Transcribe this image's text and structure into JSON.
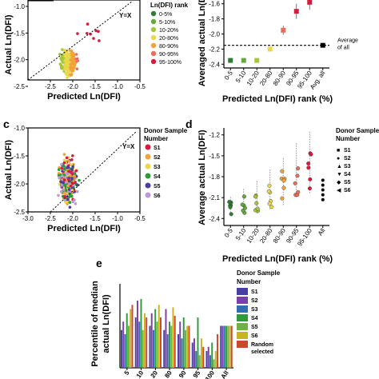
{
  "panel_labels": {
    "c": "c",
    "d": "d",
    "e": "e"
  },
  "chart_data": [
    {
      "id": "a",
      "type": "scatter",
      "xlabel": "Predicted Ln(DFI)",
      "ylabel": "Actual Ln(DFI)",
      "xlim": [
        -3.0,
        -0.5
      ],
      "ylim": [
        -2.5,
        -1.0
      ],
      "xticks": [
        "-2.5",
        "-2.0",
        "-1.5",
        "-1.0",
        "-0.5"
      ],
      "yticks": [
        "-1.0",
        "-1.5",
        "-2.0",
        "-2.5"
      ],
      "reference_line": "Y=X",
      "legend_title": "Ln(DFI) rank",
      "legend": [
        {
          "label": "0-5%",
          "color": "#2e7d32"
        },
        {
          "label": "5-10%",
          "color": "#66a83e"
        },
        {
          "label": "10-20%",
          "color": "#a4c639"
        },
        {
          "label": "20-80%",
          "color": "#e8d84a"
        },
        {
          "label": "80-90%",
          "color": "#f2a23a"
        },
        {
          "label": "90-95%",
          "color": "#e8705a"
        },
        {
          "label": "95-100%",
          "color": "#d81b3c"
        }
      ]
    },
    {
      "id": "b",
      "type": "scatter",
      "xlabel": "Predicted Ln(DFI) rank (%)",
      "ylabel": "Averaged actual Ln(DFI)",
      "categories": [
        "0-5",
        "5-10",
        "10-20",
        "20-80",
        "80-90",
        "90-95",
        "95-100",
        "Avg. all"
      ],
      "values": [
        -2.35,
        -2.35,
        -2.35,
        -2.2,
        -1.95,
        -1.7,
        -1.58,
        -2.15
      ],
      "errors": [
        0.02,
        0.02,
        0.02,
        0.03,
        0.06,
        0.1,
        0.1,
        0.0
      ],
      "colors": [
        "#2e7d32",
        "#66a83e",
        "#a4c639",
        "#e8d84a",
        "#e8705a",
        "#d81b3c",
        "#d81b3c",
        "#000000"
      ],
      "ylim": [
        -2.45,
        -1.55
      ],
      "yticks": [
        "-1.6",
        "-1.8",
        "-2.0",
        "-2.2",
        "-2.4"
      ],
      "reference_label": "Average of all",
      "reference_value": -2.15
    },
    {
      "id": "c",
      "type": "scatter",
      "xlabel": "Predicted Ln(DFI)",
      "ylabel": "Actual Ln(DFI)",
      "xlim": [
        -3.0,
        -0.5
      ],
      "ylim": [
        -2.5,
        -1.0
      ],
      "xticks": [
        "-3.0",
        "-2.5",
        "-2.0",
        "-1.5",
        "-1.0",
        "-0.5"
      ],
      "yticks": [
        "-1.0",
        "-1.5",
        "-2.0",
        "-2.5"
      ],
      "reference_line": "Y=X",
      "legend_title": "Donor Sample Number",
      "legend": [
        {
          "label": "S1",
          "color": "#d81b3c"
        },
        {
          "label": "S2",
          "color": "#f2a23a"
        },
        {
          "label": "S3",
          "color": "#e8d84a"
        },
        {
          "label": "S4",
          "color": "#2e9b3a"
        },
        {
          "label": "S5",
          "color": "#4a3fa0"
        },
        {
          "label": "S6",
          "color": "#b99bd8"
        }
      ]
    },
    {
      "id": "d",
      "type": "scatter",
      "xlabel": "Predicted Ln(DFI) rank (%)",
      "ylabel": "Average actual Ln(DFI)",
      "categories": [
        "0-5",
        "5-10",
        "10-20",
        "20-80",
        "80-90",
        "90-95",
        "95-100",
        "All"
      ],
      "yticks": [
        "-1.2",
        "-1.5",
        "-1.8",
        "-2.1",
        "-2.4"
      ],
      "ylim": [
        -2.5,
        -1.1
      ],
      "legend_title": "Donor Sample Number",
      "legend": [
        {
          "label": "S1",
          "marker": "square"
        },
        {
          "label": "S2",
          "marker": "circle"
        },
        {
          "label": "S3",
          "marker": "triangle-up"
        },
        {
          "label": "S4",
          "marker": "triangle-down"
        },
        {
          "label": "S5",
          "marker": "diamond"
        },
        {
          "label": "S6",
          "marker": "triangle-left"
        }
      ],
      "series_means": [
        -2.25,
        -2.2,
        -2.15,
        -2.05,
        -1.95,
        -1.8,
        -1.7,
        -2.0
      ]
    },
    {
      "id": "e",
      "type": "bar",
      "ylabel": "Percentile of median actual Ln(DFI)",
      "legend_title": "Donor Sample Number",
      "legend": [
        {
          "label": "S1",
          "color": "#4a3fa0"
        },
        {
          "label": "S2",
          "color": "#7b3fa8"
        },
        {
          "label": "S3",
          "color": "#2f6fb0"
        },
        {
          "label": "S4",
          "color": "#2e9b3a"
        },
        {
          "label": "S5",
          "color": "#6db33f"
        },
        {
          "label": "S6",
          "color": "#c8b420"
        },
        {
          "label": "Random selected",
          "color": "#d2452b"
        }
      ],
      "xticks": [
        "5",
        "10",
        "20",
        "80",
        "90",
        "95",
        "100",
        "All"
      ],
      "groups": [
        [
          0.45,
          0.55,
          0.4,
          0.65,
          0.5,
          0.7,
          0.75
        ],
        [
          0.6,
          0.8,
          0.55,
          0.82,
          0.45,
          0.65,
          0.6
        ],
        [
          0.5,
          0.65,
          0.45,
          0.7,
          0.55,
          0.75,
          0.6
        ],
        [
          0.45,
          0.7,
          0.4,
          0.55,
          0.5,
          0.72,
          0.62
        ],
        [
          0.4,
          0.55,
          0.35,
          0.6,
          0.45,
          0.5,
          0.5
        ],
        [
          0.3,
          0.35,
          0.2,
          0.6,
          0.15,
          0.35,
          0.25
        ],
        [
          0.2,
          0.25,
          0.15,
          0.3,
          0.1,
          0.2,
          0.4
        ],
        [
          0.5,
          0.5,
          0.5,
          0.5,
          0.5,
          0.5,
          0.5
        ]
      ]
    }
  ]
}
